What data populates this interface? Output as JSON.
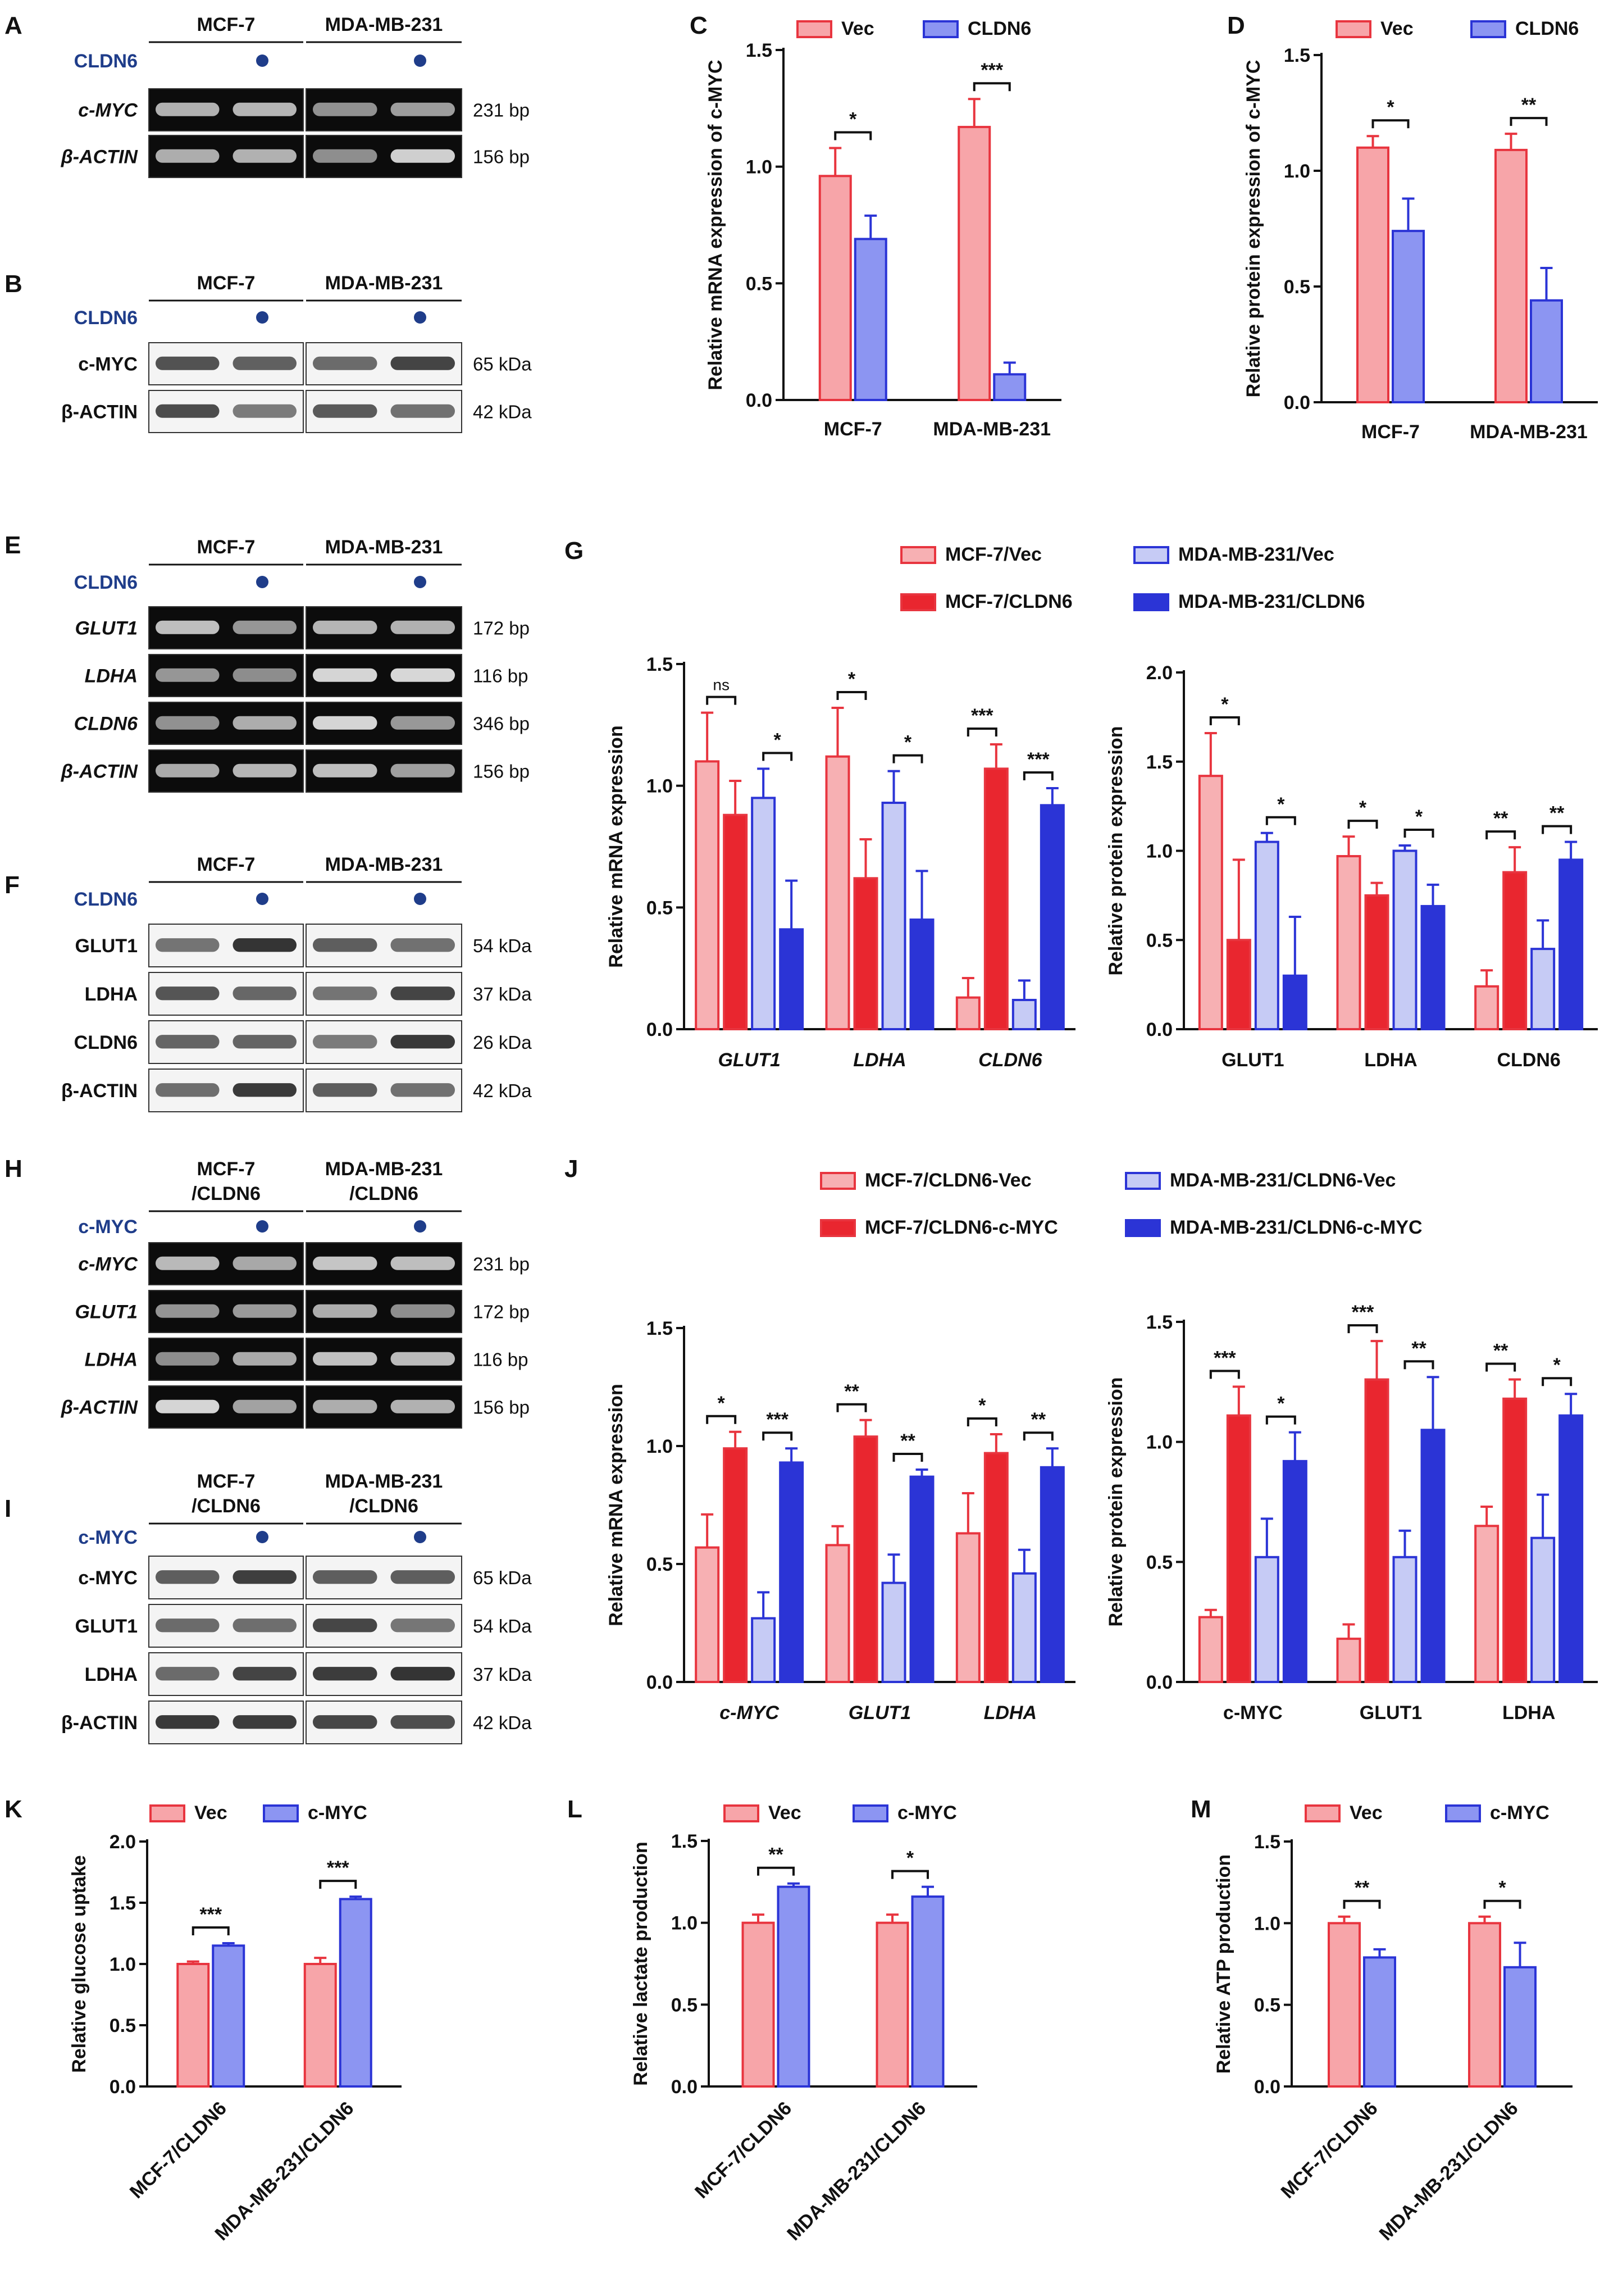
{
  "colors": {
    "vec_fill": "#f7a5a9",
    "vec_stroke": "#e8353f",
    "cldn_fill": "#8c95f2",
    "cldn_stroke": "#2b34d6",
    "dot": "#1f3d8a",
    "treat_text": "#1f3d8a",
    "mcf_light_fill": "#f7b0b3",
    "mcf_dark_fill": "#e9262f",
    "mda_light_fill": "#c6cbf5",
    "mda_dark_fill": "#2b34d6"
  },
  "gels": [
    {
      "panel": "A",
      "cols": [
        "MCF-7",
        "MDA-MB-231"
      ],
      "treatment": "CLDN6",
      "lanes": [
        {
          "name": "c-MYC",
          "size": "231 bp",
          "italic": true
        },
        {
          "name": "β-ACTIN",
          "size": "156 bp",
          "italic": true
        }
      ]
    },
    {
      "panel": "B",
      "cols": [
        "MCF-7",
        "MDA-MB-231"
      ],
      "treatment": "CLDN6",
      "lanes": [
        {
          "name": "c-MYC",
          "size": "65 kDa",
          "italic": false
        },
        {
          "name": "β-ACTIN",
          "size": "42 kDa",
          "italic": false
        }
      ]
    },
    {
      "panel": "E",
      "cols": [
        "MCF-7",
        "MDA-MB-231"
      ],
      "treatment": "CLDN6",
      "lanes": [
        {
          "name": "GLUT1",
          "size": "172 bp",
          "italic": true
        },
        {
          "name": "LDHA",
          "size": "116 bp",
          "italic": true
        },
        {
          "name": "CLDN6",
          "size": "346 bp",
          "italic": true
        },
        {
          "name": "β-ACTIN",
          "size": "156 bp",
          "italic": true
        }
      ]
    },
    {
      "panel": "F",
      "cols": [
        "MCF-7",
        "MDA-MB-231"
      ],
      "treatment": "CLDN6",
      "lanes": [
        {
          "name": "GLUT1",
          "size": "54 kDa",
          "italic": false
        },
        {
          "name": "LDHA",
          "size": "37 kDa",
          "italic": false
        },
        {
          "name": "CLDN6",
          "size": "26 kDa",
          "italic": false
        },
        {
          "name": "β-ACTIN",
          "size": "42 kDa",
          "italic": false
        }
      ]
    },
    {
      "panel": "H",
      "cols": [
        "MCF-7\n/CLDN6",
        "MDA-MB-231\n/CLDN6"
      ],
      "treatment": "c-MYC",
      "lanes": [
        {
          "name": "c-MYC",
          "size": "231 bp",
          "italic": true
        },
        {
          "name": "GLUT1",
          "size": "172 bp",
          "italic": true
        },
        {
          "name": "LDHA",
          "size": "116 bp",
          "italic": true
        },
        {
          "name": "β-ACTIN",
          "size": "156 bp",
          "italic": true
        }
      ]
    },
    {
      "panel": "I",
      "cols": [
        "MCF-7\n/CLDN6",
        "MDA-MB-231\n/CLDN6"
      ],
      "treatment": "c-MYC",
      "lanes": [
        {
          "name": "c-MYC",
          "size": "65 kDa",
          "italic": false
        },
        {
          "name": "GLUT1",
          "size": "54 kDa",
          "italic": false
        },
        {
          "name": "LDHA",
          "size": "37 kDa",
          "italic": false
        },
        {
          "name": "β-ACTIN",
          "size": "42 kDa",
          "italic": false
        }
      ]
    }
  ],
  "chart_data": [
    {
      "panel": "C",
      "type": "bar",
      "ylabel": "Relative mRNA expression of c-MYC",
      "ylim": [
        0,
        1.5
      ],
      "yticks": [
        "0.0",
        "0.5",
        "1.0",
        "1.5"
      ],
      "categories": [
        "MCF-7",
        "MDA-MB-231"
      ],
      "series": [
        {
          "name": "Vec",
          "values": [
            0.96,
            1.17
          ],
          "errors": [
            0.12,
            0.12
          ]
        },
        {
          "name": "CLDN6",
          "values": [
            0.69,
            0.11
          ],
          "errors": [
            0.1,
            0.05
          ]
        }
      ],
      "significance": [
        "*",
        "***"
      ]
    },
    {
      "panel": "D",
      "type": "bar",
      "ylabel": "Relative protein expression of c-MYC",
      "ylim": [
        0,
        1.5
      ],
      "yticks": [
        "0.0",
        "0.5",
        "1.0",
        "1.5"
      ],
      "categories": [
        "MCF-7",
        "MDA-MB-231"
      ],
      "series": [
        {
          "name": "Vec",
          "values": [
            1.1,
            1.09
          ],
          "errors": [
            0.05,
            0.07
          ]
        },
        {
          "name": "CLDN6",
          "values": [
            0.74,
            0.44
          ],
          "errors": [
            0.14,
            0.14
          ]
        }
      ],
      "significance": [
        "*",
        "**"
      ]
    },
    {
      "panel": "G",
      "type": "bar",
      "ylabel": "Relative mRNA expression",
      "ylim": [
        0,
        1.5
      ],
      "yticks": [
        "0.0",
        "0.5",
        "1.0",
        "1.5"
      ],
      "categories": [
        "GLUT1",
        "LDHA",
        "CLDN6"
      ],
      "series": [
        {
          "name": "MCF-7/Vec",
          "values": [
            1.1,
            1.12,
            0.13
          ],
          "errors": [
            0.2,
            0.2,
            0.08
          ]
        },
        {
          "name": "MCF-7/CLDN6",
          "values": [
            0.88,
            0.62,
            1.07
          ],
          "errors": [
            0.14,
            0.16,
            0.1
          ]
        },
        {
          "name": "MDA-MB-231/Vec",
          "values": [
            0.95,
            0.93,
            0.12
          ],
          "errors": [
            0.12,
            0.13,
            0.08
          ]
        },
        {
          "name": "MDA-MB-231/CLDN6",
          "values": [
            0.41,
            0.45,
            0.92
          ],
          "errors": [
            0.2,
            0.2,
            0.07
          ]
        }
      ],
      "significance": [
        [
          "ns",
          "*"
        ],
        [
          "*",
          "*"
        ],
        [
          "***",
          "***"
        ]
      ]
    },
    {
      "panel": "G",
      "type": "bar",
      "ylabel": "Relative protein expression",
      "ylim": [
        0,
        2.0
      ],
      "yticks": [
        "0.0",
        "0.5",
        "1.0",
        "1.5",
        "2.0"
      ],
      "categories": [
        "GLUT1",
        "LDHA",
        "CLDN6"
      ],
      "series": [
        {
          "name": "MCF-7/Vec",
          "values": [
            1.42,
            0.97,
            0.24
          ],
          "errors": [
            0.24,
            0.11,
            0.09
          ]
        },
        {
          "name": "MCF-7/CLDN6",
          "values": [
            0.5,
            0.75,
            0.88
          ],
          "errors": [
            0.45,
            0.07,
            0.14
          ]
        },
        {
          "name": "MDA-MB-231/Vec",
          "values": [
            1.05,
            1.0,
            0.45
          ],
          "errors": [
            0.05,
            0.03,
            0.16
          ]
        },
        {
          "name": "MDA-MB-231/CLDN6",
          "values": [
            0.3,
            0.69,
            0.95
          ],
          "errors": [
            0.33,
            0.12,
            0.1
          ]
        }
      ],
      "significance": [
        [
          "*",
          "*"
        ],
        [
          "*",
          "*"
        ],
        [
          "**",
          "**"
        ]
      ]
    },
    {
      "panel": "J",
      "type": "bar",
      "ylabel": "Relative mRNA expression",
      "ylim": [
        0,
        1.5
      ],
      "yticks": [
        "0.0",
        "0.5",
        "1.0",
        "1.5"
      ],
      "categories": [
        "c-MYC",
        "GLUT1",
        "LDHA"
      ],
      "series": [
        {
          "name": "MCF-7/CLDN6-Vec",
          "values": [
            0.57,
            0.58,
            0.63
          ],
          "errors": [
            0.14,
            0.08,
            0.17
          ]
        },
        {
          "name": "MCF-7/CLDN6-c-MYC",
          "values": [
            0.99,
            1.04,
            0.97
          ],
          "errors": [
            0.07,
            0.07,
            0.08
          ]
        },
        {
          "name": "MDA-MB-231/CLDN6-Vec",
          "values": [
            0.27,
            0.42,
            0.46
          ],
          "errors": [
            0.11,
            0.12,
            0.1
          ]
        },
        {
          "name": "MDA-MB-231/CLDN6-c-MYC",
          "values": [
            0.93,
            0.87,
            0.91
          ],
          "errors": [
            0.06,
            0.03,
            0.08
          ]
        }
      ],
      "significance": [
        [
          "*",
          "***"
        ],
        [
          "**",
          "**"
        ],
        [
          "*",
          "**"
        ]
      ]
    },
    {
      "panel": "J",
      "type": "bar",
      "ylabel": "Relative protein expression",
      "ylim": [
        0,
        1.5
      ],
      "yticks": [
        "0.0",
        "0.5",
        "1.0",
        "1.5"
      ],
      "categories": [
        "c-MYC",
        "GLUT1",
        "LDHA"
      ],
      "series": [
        {
          "name": "MCF-7/CLDN6-Vec",
          "values": [
            0.27,
            0.18,
            0.65
          ],
          "errors": [
            0.03,
            0.06,
            0.08
          ]
        },
        {
          "name": "MCF-7/CLDN6-c-MYC",
          "values": [
            1.11,
            1.26,
            1.18
          ],
          "errors": [
            0.12,
            0.16,
            0.08
          ]
        },
        {
          "name": "MDA-MB-231/CLDN6-Vec",
          "values": [
            0.52,
            0.52,
            0.6
          ],
          "errors": [
            0.16,
            0.11,
            0.18
          ]
        },
        {
          "name": "MDA-MB-231/CLDN6-c-MYC",
          "values": [
            0.92,
            1.05,
            1.11
          ],
          "errors": [
            0.12,
            0.22,
            0.09
          ]
        }
      ],
      "significance": [
        [
          "***",
          "*"
        ],
        [
          "***",
          "**"
        ],
        [
          "**",
          "*"
        ]
      ]
    },
    {
      "panel": "K",
      "type": "bar",
      "ylabel": "Relative glucose uptake",
      "ylim": [
        0,
        2.0
      ],
      "yticks": [
        "0.0",
        "0.5",
        "1.0",
        "1.5",
        "2.0"
      ],
      "categories": [
        "MCF-7/CLDN6",
        "MDA-MB-231/CLDN6"
      ],
      "series": [
        {
          "name": "Vec",
          "values": [
            1.0,
            1.0
          ],
          "errors": [
            0.02,
            0.05
          ]
        },
        {
          "name": "c-MYC",
          "values": [
            1.15,
            1.53
          ],
          "errors": [
            0.02,
            0.02
          ]
        }
      ],
      "significance": [
        "***",
        "***"
      ]
    },
    {
      "panel": "L",
      "type": "bar",
      "ylabel": "Relative lactate production",
      "ylim": [
        0,
        1.5
      ],
      "yticks": [
        "0.0",
        "0.5",
        "1.0",
        "1.5"
      ],
      "categories": [
        "MCF-7/CLDN6",
        "MDA-MB-231/CLDN6"
      ],
      "series": [
        {
          "name": "Vec",
          "values": [
            1.0,
            1.0
          ],
          "errors": [
            0.05,
            0.05
          ]
        },
        {
          "name": "c-MYC",
          "values": [
            1.22,
            1.16
          ],
          "errors": [
            0.02,
            0.06
          ]
        }
      ],
      "significance": [
        "**",
        "*"
      ]
    },
    {
      "panel": "M",
      "type": "bar",
      "ylabel": "Relative ATP production",
      "ylim": [
        0,
        1.5
      ],
      "yticks": [
        "0.0",
        "0.5",
        "1.0",
        "1.5"
      ],
      "categories": [
        "MCF-7/CLDN6",
        "MDA-MB-231/CLDN6"
      ],
      "series": [
        {
          "name": "Vec",
          "values": [
            1.0,
            1.0
          ],
          "errors": [
            0.04,
            0.04
          ]
        },
        {
          "name": "c-MYC",
          "values": [
            0.79,
            0.73
          ],
          "errors": [
            0.05,
            0.15
          ]
        }
      ],
      "significance": [
        "**",
        "*"
      ]
    }
  ]
}
